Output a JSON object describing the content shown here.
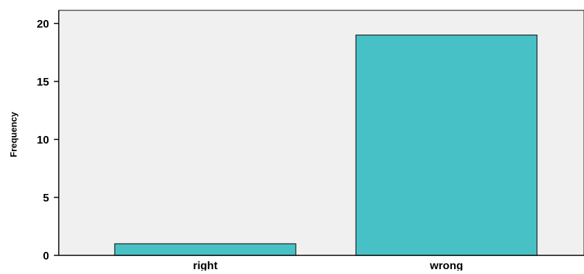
{
  "chart_data": {
    "type": "bar",
    "categories": [
      "right",
      "wrong"
    ],
    "values": [
      1,
      19
    ],
    "ylabel": "Frequency",
    "xlabel": "",
    "ylim": [
      0,
      21
    ],
    "yticks": [
      0,
      5,
      10,
      15,
      20
    ],
    "grid": false,
    "colors": {
      "plot_background": "#f0f0f0",
      "bar_fill": "#48c1c6",
      "bar_stroke": "#1a1a1a",
      "axis": "#000000"
    }
  }
}
